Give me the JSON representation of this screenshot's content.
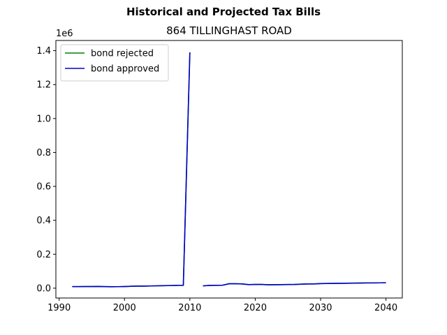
{
  "chart_data": {
    "type": "line",
    "suptitle": "Historical and Projected Tax Bills",
    "title": "864 TILLINGHAST ROAD",
    "xlabel": "",
    "ylabel": "",
    "y_offset_label": "1e6",
    "xlim": [
      1989.5,
      2042.5
    ],
    "ylim": [
      -0.058,
      1.46
    ],
    "x_ticks": [
      1990,
      2000,
      2010,
      2020,
      2030,
      2040
    ],
    "x_tick_labels": [
      "1990",
      "2000",
      "2010",
      "2020",
      "2030",
      "2040"
    ],
    "y_ticks": [
      0.0,
      0.2,
      0.4,
      0.6,
      0.8,
      1.0,
      1.2,
      1.4
    ],
    "y_tick_labels": [
      "0.0",
      "0.2",
      "0.4",
      "0.6",
      "0.8",
      "1.0",
      "1.2",
      "1.4"
    ],
    "legend": {
      "position": "upper-left"
    },
    "series": [
      {
        "name": "bond rejected",
        "color": "#008000",
        "segments": [
          {
            "x": [
              1992,
              1993,
              1994,
              1995,
              1996,
              1997,
              1998,
              1999,
              2000,
              2001,
              2002,
              2003,
              2004,
              2005,
              2006,
              2007,
              2008,
              2009,
              2010
            ],
            "y": [
              0.009,
              0.009,
              0.0095,
              0.0098,
              0.01,
              0.0092,
              0.0087,
              0.0088,
              0.0095,
              0.011,
              0.012,
              0.012,
              0.013,
              0.014,
              0.0148,
              0.0155,
              0.0165,
              0.017,
              1.39
            ]
          },
          {
            "x": [
              2012,
              2013,
              2014,
              2015,
              2016,
              2017,
              2018,
              2019,
              2020,
              2021,
              2022,
              2023,
              2024,
              2025,
              2026,
              2027,
              2028,
              2029,
              2030,
              2031,
              2032,
              2033,
              2034,
              2035,
              2036,
              2037,
              2038,
              2039,
              2040
            ],
            "y": [
              0.0135,
              0.0165,
              0.017,
              0.0175,
              0.026,
              0.026,
              0.025,
              0.021,
              0.022,
              0.022,
              0.02,
              0.0205,
              0.021,
              0.0215,
              0.022,
              0.0235,
              0.025,
              0.025,
              0.027,
              0.0275,
              0.028,
              0.0285,
              0.029,
              0.0295,
              0.03,
              0.031,
              0.031,
              0.0315,
              0.032
            ]
          }
        ]
      },
      {
        "name": "bond approved",
        "color": "#0000cc",
        "segments": [
          {
            "x": [
              1992,
              1993,
              1994,
              1995,
              1996,
              1997,
              1998,
              1999,
              2000,
              2001,
              2002,
              2003,
              2004,
              2005,
              2006,
              2007,
              2008,
              2009,
              2010
            ],
            "y": [
              0.009,
              0.009,
              0.0095,
              0.0098,
              0.01,
              0.0092,
              0.0087,
              0.0088,
              0.0095,
              0.011,
              0.012,
              0.012,
              0.013,
              0.014,
              0.0148,
              0.0155,
              0.0165,
              0.017,
              1.39
            ]
          },
          {
            "x": [
              2012,
              2013,
              2014,
              2015,
              2016,
              2017,
              2018,
              2019,
              2020,
              2021,
              2022,
              2023,
              2024,
              2025,
              2026,
              2027,
              2028,
              2029,
              2030,
              2031,
              2032,
              2033,
              2034,
              2035,
              2036,
              2037,
              2038,
              2039,
              2040
            ],
            "y": [
              0.0135,
              0.0165,
              0.017,
              0.0175,
              0.026,
              0.026,
              0.025,
              0.021,
              0.022,
              0.022,
              0.02,
              0.0205,
              0.021,
              0.0215,
              0.022,
              0.0235,
              0.025,
              0.025,
              0.027,
              0.0275,
              0.028,
              0.0285,
              0.029,
              0.0295,
              0.03,
              0.031,
              0.031,
              0.0315,
              0.032
            ]
          }
        ]
      }
    ]
  }
}
